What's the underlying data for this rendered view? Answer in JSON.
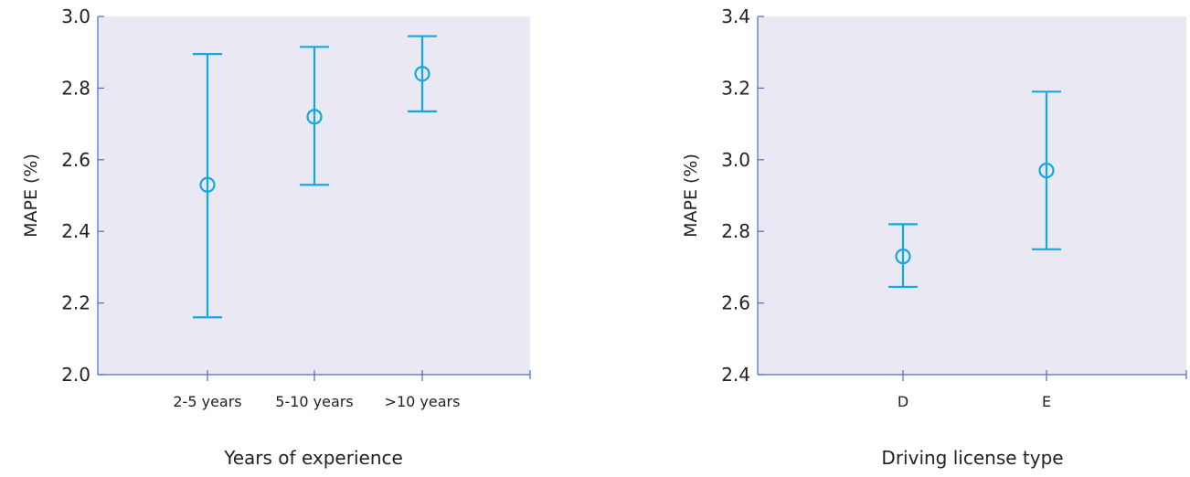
{
  "colors": {
    "accent": "#12a8e0",
    "axis": "#4a6fc4",
    "plot_background": "#e9e8f3"
  },
  "chart_data": [
    {
      "type": "scatter",
      "title": "",
      "xlabel": "Years of experience",
      "ylabel": "MAPE (%)",
      "ylim": [
        2.0,
        3.0
      ],
      "yticks": [
        "2.0",
        "2.2",
        "2.4",
        "2.6",
        "2.8",
        "3.0"
      ],
      "categories": [
        "2-5 years",
        "5-10 years",
        ">10 years"
      ],
      "series": [
        {
          "values": [
            2.53,
            2.72,
            2.84
          ],
          "lower": [
            2.16,
            2.53,
            2.735
          ],
          "upper": [
            2.895,
            2.915,
            2.945
          ]
        }
      ],
      "grid": false,
      "error_bars": true
    },
    {
      "type": "scatter",
      "title": "",
      "xlabel": "Driving license type",
      "ylabel": "MAPE (%)",
      "ylim": [
        2.4,
        3.4
      ],
      "yticks": [
        "2.4",
        "2.6",
        "2.8",
        "3.0",
        "3.2",
        "3.4"
      ],
      "categories": [
        "D",
        "E"
      ],
      "series": [
        {
          "values": [
            2.73,
            2.97
          ],
          "lower": [
            2.645,
            2.75
          ],
          "upper": [
            2.82,
            3.19
          ]
        }
      ],
      "grid": false,
      "error_bars": true
    }
  ]
}
